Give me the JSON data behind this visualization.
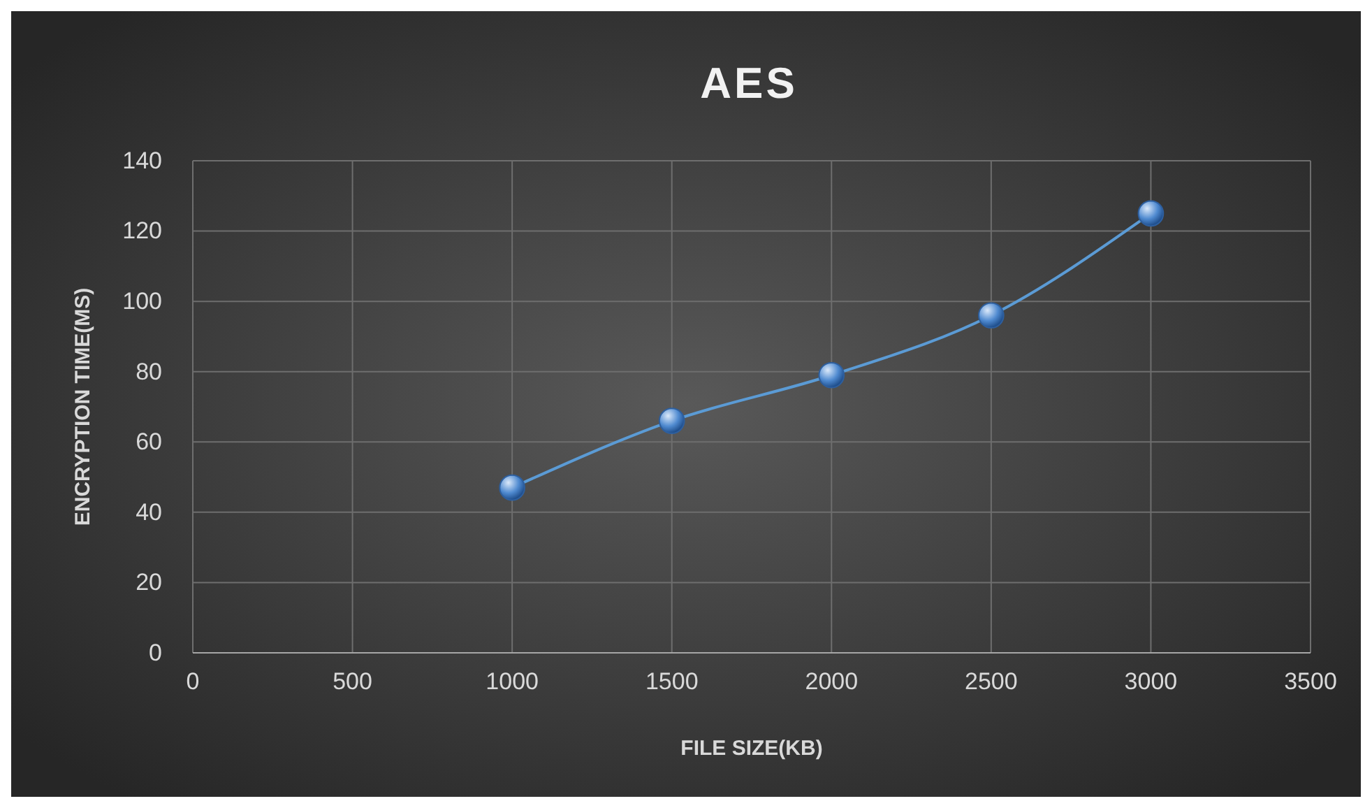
{
  "chart_data": {
    "type": "line",
    "title": "AES",
    "xlabel": "FILE SIZE(KB)",
    "ylabel": "ENCRYPTION TIME(MS)",
    "x": [
      1000,
      1500,
      2000,
      2500,
      3000
    ],
    "series": [
      {
        "color": "#5b9bd5",
        "values": [
          47,
          66,
          79,
          96,
          125
        ]
      }
    ],
    "xlim": [
      0,
      3500
    ],
    "xticks": [
      0,
      500,
      1000,
      1500,
      2000,
      2500,
      3000,
      3500
    ],
    "ylim": [
      0,
      140
    ],
    "yticks": [
      0,
      20,
      40,
      60,
      80,
      100,
      120,
      140
    ],
    "grid": true,
    "marker": "circle",
    "line_style": "solid"
  }
}
